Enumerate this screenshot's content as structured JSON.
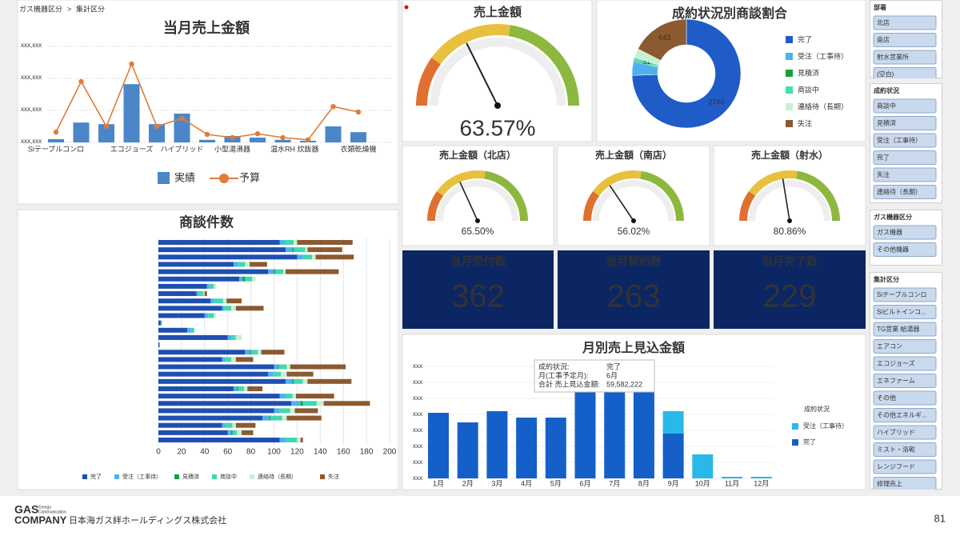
{
  "breadcrumb": {
    "items": [
      "ガス機器区分",
      "集計区分"
    ],
    "separator": ">"
  },
  "sales": {
    "type": "bar",
    "title": "当月売上金額",
    "categories": [
      "Siテーブルコンロ",
      null,
      null,
      "エコジョーズ",
      null,
      "ハイブリッド",
      null,
      "小型湯沸器",
      null,
      "温水RH",
      "炊飯器",
      null,
      "衣類乾燥機"
    ],
    "series": [
      {
        "name": "実績",
        "color": "#4a86c8",
        "values": [
          10,
          62,
          57,
          182,
          57,
          90,
          8,
          20,
          15,
          8,
          5,
          50,
          32
        ]
      },
      {
        "name": "予算",
        "type": "line",
        "color": "#e07b39",
        "values": [
          32,
          190,
          50,
          245,
          50,
          75,
          25,
          15,
          27,
          15,
          8,
          112,
          95
        ]
      }
    ],
    "ylim": [
      0,
      320
    ],
    "yticks": [
      {
        "value": 0,
        "label": "xxx,xxx"
      },
      {
        "value": 100,
        "label": "xxx,xxx"
      },
      {
        "value": 200,
        "label": "xxx,xxx"
      },
      {
        "value": 300,
        "label": "xxx,xxx"
      }
    ]
  },
  "gauges": [
    {
      "title": "売上金額",
      "value": 63.57,
      "value_label": "63.57%",
      "range": [
        0,
        180
      ]
    },
    {
      "title": "売上金額（北店）",
      "value": 65.5,
      "value_label": "65.50%",
      "range": [
        0,
        180
      ]
    },
    {
      "title": "売上金額（南店）",
      "value": 56.02,
      "value_label": "56.02%",
      "range": [
        0,
        180
      ]
    },
    {
      "title": "売上金額（射水）",
      "value": 80.86,
      "value_label": "80.86%",
      "range": [
        0,
        180
      ]
    }
  ],
  "donut": {
    "type": "pie",
    "title": "成約状況別商談割合",
    "categories": [
      "完了",
      "受注（工事待）",
      "見積済",
      "商談中",
      "連絡待（長期）",
      "失注"
    ],
    "values": [
      2740,
      150,
      15,
      31,
      100,
      643
    ],
    "value_labels": [
      "2740",
      null,
      null,
      "31",
      null,
      "643"
    ],
    "colors": [
      "#1f5cc8",
      "#4fb0f0",
      "#18a038",
      "#40e0b0",
      "#c8f0d0",
      "#8b5a30"
    ]
  },
  "kpis": [
    {
      "title": "当月受付数",
      "value": 362
    },
    {
      "title": "当月契約数",
      "value": 263
    },
    {
      "title": "当月完了数",
      "value": 229
    }
  ],
  "deals": {
    "type": "hbar",
    "stacked": true,
    "title": "商談件数",
    "categories": [
      null,
      null,
      null,
      null,
      null,
      null,
      null,
      null,
      null,
      null,
      null,
      null,
      null,
      null,
      null,
      null,
      null,
      null,
      null,
      null,
      null,
      null,
      null,
      null,
      null,
      null,
      null,
      null
    ],
    "series": [
      {
        "name": "完了",
        "color": "#1f4fb0",
        "values": [
          105,
          110,
          120,
          65,
          95,
          70,
          42,
          33,
          45,
          55,
          40,
          2,
          25,
          60,
          1,
          75,
          55,
          100,
          95,
          110,
          65,
          105,
          115,
          100,
          90,
          55,
          60,
          105
        ]
      },
      {
        "name": "受注（工事待）",
        "color": "#4fb0f0",
        "values": [
          4,
          6,
          5,
          4,
          5,
          3,
          2,
          2,
          3,
          2,
          3,
          1,
          3,
          3,
          0,
          4,
          3,
          3,
          4,
          6,
          3,
          5,
          8,
          5,
          6,
          3,
          3,
          5
        ]
      },
      {
        "name": "見積済",
        "color": "#18a038",
        "values": [
          0,
          1,
          0,
          0,
          1,
          2,
          0,
          0,
          0,
          0,
          0,
          0,
          0,
          0,
          0,
          1,
          0,
          1,
          0,
          1,
          1,
          0,
          2,
          0,
          1,
          0,
          1,
          0
        ]
      },
      {
        "name": "商談中",
        "color": "#40d8b0",
        "values": [
          8,
          10,
          8,
          6,
          7,
          6,
          4,
          4,
          8,
          6,
          5,
          0,
          3,
          4,
          0,
          6,
          5,
          7,
          7,
          8,
          5,
          6,
          12,
          9,
          10,
          6,
          4,
          10
        ]
      },
      {
        "name": "連絡待（長期）",
        "color": "#c8f0d0",
        "values": [
          3,
          2,
          3,
          4,
          2,
          3,
          2,
          1,
          3,
          4,
          2,
          0,
          0,
          5,
          0,
          3,
          4,
          3,
          5,
          4,
          3,
          3,
          6,
          4,
          4,
          3,
          4,
          3
        ]
      },
      {
        "name": "失注",
        "color": "#8b5a30",
        "values": [
          48,
          30,
          33,
          15,
          46,
          0,
          0,
          2,
          13,
          24,
          0,
          0,
          0,
          0,
          0,
          20,
          15,
          48,
          23,
          38,
          13,
          33,
          40,
          20,
          30,
          17,
          10,
          2
        ]
      }
    ],
    "xlim": [
      0,
      200
    ],
    "xticks": [
      0,
      20,
      40,
      60,
      80,
      100,
      120,
      140,
      160,
      180,
      200
    ]
  },
  "monthly": {
    "type": "bar",
    "stacked": true,
    "title": "月別売上見込金額",
    "categories": [
      "1月",
      "2月",
      "3月",
      "4月",
      "5月",
      "6月",
      "7月",
      "8月",
      "9月",
      "10月",
      "11月",
      "12月"
    ],
    "series": [
      {
        "name": "受注（工事待）",
        "color": "#2ab8e8",
        "values": [
          0,
          0,
          0,
          0,
          0,
          0,
          0,
          0,
          14000000,
          15000000,
          1000000,
          1000000
        ]
      },
      {
        "name": "完了",
        "color": "#1560c8",
        "values": [
          41000000,
          35000000,
          42000000,
          38000000,
          38000000,
          59582222,
          65000000,
          62000000,
          28000000,
          0,
          0,
          0
        ]
      }
    ],
    "ylim": [
      0,
      74000000
    ],
    "yticks": [
      {
        "value": 0,
        "label": "xxx"
      },
      {
        "value": 10000000,
        "label": "xxx"
      },
      {
        "value": 20000000,
        "label": "xxx"
      },
      {
        "value": 30000000,
        "label": "xxx"
      },
      {
        "value": 40000000,
        "label": "xxx"
      },
      {
        "value": 50000000,
        "label": "xxx"
      },
      {
        "value": 60000000,
        "label": "xxx"
      },
      {
        "value": 70000000,
        "label": "xxx"
      }
    ],
    "legend_title": "成約状況",
    "tooltip": [
      [
        "成約状況:",
        "完了"
      ],
      [
        "月(工事予定月):",
        "6月"
      ],
      [
        "合計 売上見込金額:",
        "59,582,222"
      ]
    ]
  },
  "filters": [
    {
      "title": "部署",
      "items": [
        "北店",
        "南店",
        "射水営業所",
        "(空白)"
      ]
    },
    {
      "title": "成約状況",
      "items": [
        "商談中",
        "見積済",
        "受注（工事待）",
        "完了",
        "失注",
        "連絡待（長期）"
      ]
    },
    {
      "title": "ガス機器区分",
      "items": [
        "ガス機器",
        "その他機器"
      ]
    },
    {
      "title": "集計区分",
      "items": [
        "Siテーブルコンロ",
        "Siビルトインコ...",
        "TG営業 給湯器",
        "エアコン",
        "エコジョーズ",
        "エネファーム",
        "その他",
        "その他エネルギ...",
        "ハイブリッド",
        "ミスト・浴乾",
        "レンジフード",
        "修理売上"
      ]
    }
  ],
  "footer": {
    "logo_top": "GAS",
    "logo_sub": [
      "Energy",
      "Communication"
    ],
    "logo_bottom": "COMPANY",
    "company": "日本海ガス絆ホールディングス株式会社",
    "page": 81
  }
}
